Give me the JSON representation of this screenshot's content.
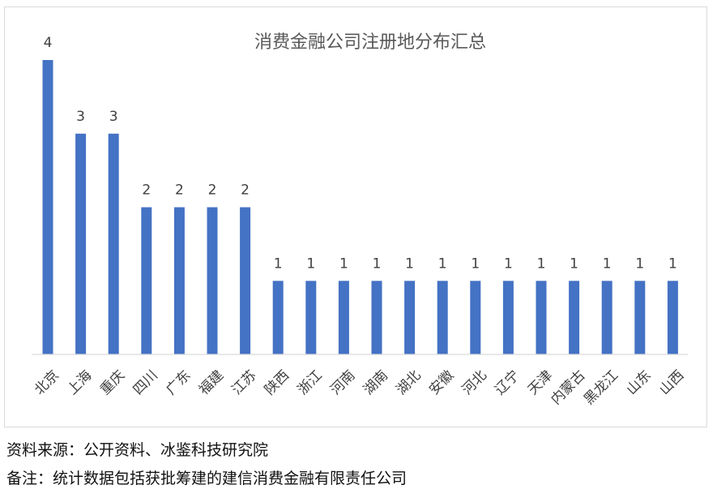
{
  "chart_data": {
    "type": "bar",
    "title": "消费金融公司注册地分布汇总",
    "categories": [
      "北京",
      "上海",
      "重庆",
      "四川",
      "广东",
      "福建",
      "江苏",
      "陕西",
      "浙江",
      "河南",
      "湖南",
      "湖北",
      "安徽",
      "河北",
      "辽宁",
      "天津",
      "内蒙古",
      "黑龙江",
      "山东",
      "山西"
    ],
    "values": [
      4,
      3,
      3,
      2,
      2,
      2,
      2,
      1,
      1,
      1,
      1,
      1,
      1,
      1,
      1,
      1,
      1,
      1,
      1,
      1
    ],
    "ylim": [
      0,
      4
    ],
    "grid": false,
    "legend": "none",
    "data_labels": true,
    "bar_color": "#4472c4"
  },
  "notes": {
    "source": "资料来源：公开资料、冰鉴科技研究院",
    "remark": "备注：统计数据包括获批筹建的建信消费金融有限责任公司"
  }
}
